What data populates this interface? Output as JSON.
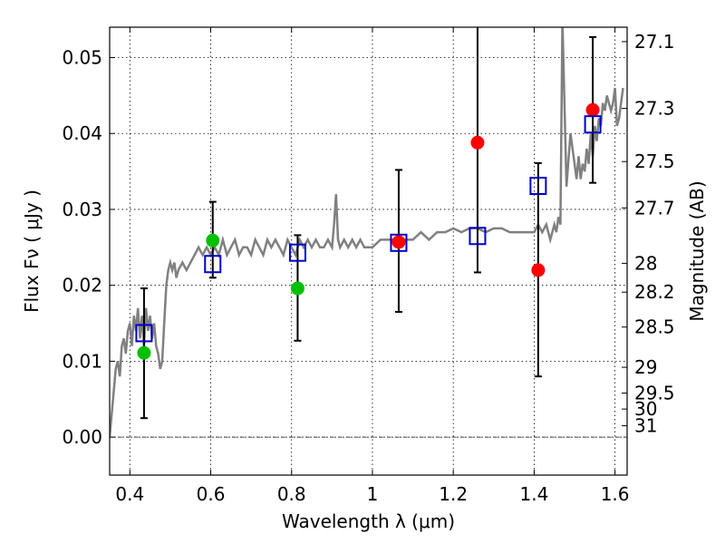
{
  "chart_data": {
    "type": "scatter",
    "xlabel": "Wavelength  λ (μm)",
    "ylabel": "Flux  Fν  ( μJy )",
    "y2label": "Magnitude (AB)",
    "xlim": [
      0.35,
      1.63
    ],
    "ylim": [
      -0.005,
      0.054
    ],
    "grid": true,
    "x_ticks": [
      {
        "value": 0.4,
        "label": "0.4"
      },
      {
        "value": 0.6,
        "label": "0.6"
      },
      {
        "value": 0.8,
        "label": "0.8"
      },
      {
        "value": 1.0,
        "label": "1"
      },
      {
        "value": 1.2,
        "label": "1.2"
      },
      {
        "value": 1.4,
        "label": "1.4"
      },
      {
        "value": 1.6,
        "label": "1.6"
      }
    ],
    "y_ticks": [
      {
        "value": 0.0,
        "label": "0.00"
      },
      {
        "value": 0.01,
        "label": "0.01"
      },
      {
        "value": 0.02,
        "label": "0.02"
      },
      {
        "value": 0.03,
        "label": "0.03"
      },
      {
        "value": 0.04,
        "label": "0.04"
      },
      {
        "value": 0.05,
        "label": "0.05"
      }
    ],
    "mag_ticks": [
      {
        "label": "27.1",
        "flux": 0.0521
      },
      {
        "label": "27.3",
        "flux": 0.0433
      },
      {
        "label": "27.5",
        "flux": 0.0363
      },
      {
        "label": "27.7",
        "flux": 0.0302
      },
      {
        "label": "28",
        "flux": 0.0229
      },
      {
        "label": "28.2",
        "flux": 0.0191
      },
      {
        "label": "28.5",
        "flux": 0.0145
      },
      {
        "label": "29",
        "flux": 0.0092
      },
      {
        "label": "29.5",
        "flux": 0.0058
      },
      {
        "label": "30",
        "flux": 0.0037
      },
      {
        "label": "31",
        "flux": 0.0015
      }
    ],
    "model_spectrum": {
      "color": "#808080",
      "x": [
        0.35,
        0.355,
        0.36,
        0.365,
        0.37,
        0.375,
        0.38,
        0.385,
        0.39,
        0.395,
        0.4,
        0.405,
        0.41,
        0.415,
        0.42,
        0.425,
        0.43,
        0.435,
        0.44,
        0.445,
        0.45,
        0.455,
        0.46,
        0.465,
        0.47,
        0.475,
        0.48,
        0.485,
        0.49,
        0.495,
        0.5,
        0.505,
        0.51,
        0.515,
        0.52,
        0.53,
        0.54,
        0.55,
        0.56,
        0.57,
        0.58,
        0.59,
        0.6,
        0.61,
        0.62,
        0.63,
        0.64,
        0.65,
        0.66,
        0.67,
        0.68,
        0.69,
        0.7,
        0.71,
        0.72,
        0.73,
        0.74,
        0.75,
        0.76,
        0.77,
        0.78,
        0.79,
        0.8,
        0.81,
        0.82,
        0.83,
        0.84,
        0.85,
        0.86,
        0.87,
        0.88,
        0.89,
        0.9,
        0.905,
        0.91,
        0.915,
        0.92,
        0.93,
        0.94,
        0.95,
        0.96,
        0.97,
        0.98,
        0.99,
        1.0,
        1.02,
        1.04,
        1.06,
        1.08,
        1.1,
        1.12,
        1.14,
        1.16,
        1.18,
        1.2,
        1.22,
        1.24,
        1.26,
        1.28,
        1.3,
        1.32,
        1.34,
        1.36,
        1.38,
        1.4,
        1.41,
        1.42,
        1.43,
        1.44,
        1.45,
        1.455,
        1.46,
        1.465,
        1.47,
        1.48,
        1.49,
        1.5,
        1.505,
        1.51,
        1.515,
        1.52,
        1.525,
        1.53,
        1.535,
        1.54,
        1.545,
        1.55,
        1.555,
        1.56,
        1.565,
        1.57,
        1.575,
        1.58,
        1.585,
        1.59,
        1.595,
        1.6,
        1.605,
        1.61,
        1.615,
        1.62
      ],
      "y": [
        0.0,
        0.003,
        0.006,
        0.009,
        0.01,
        0.008,
        0.012,
        0.013,
        0.011,
        0.014,
        0.015,
        0.012,
        0.016,
        0.014,
        0.017,
        0.013,
        0.016,
        0.012,
        0.017,
        0.014,
        0.016,
        0.013,
        0.015,
        0.012,
        0.011,
        0.009,
        0.01,
        0.015,
        0.02,
        0.022,
        0.023,
        0.022,
        0.023,
        0.021,
        0.022,
        0.023,
        0.022,
        0.023,
        0.024,
        0.025,
        0.024,
        0.025,
        0.024,
        0.025,
        0.024,
        0.026,
        0.024,
        0.025,
        0.026,
        0.024,
        0.025,
        0.025,
        0.024,
        0.026,
        0.025,
        0.024,
        0.026,
        0.025,
        0.026,
        0.025,
        0.024,
        0.026,
        0.025,
        0.024,
        0.026,
        0.025,
        0.026,
        0.025,
        0.026,
        0.025,
        0.025,
        0.026,
        0.025,
        0.028,
        0.032,
        0.026,
        0.025,
        0.026,
        0.025,
        0.026,
        0.025,
        0.026,
        0.025,
        0.025,
        0.025,
        0.026,
        0.026,
        0.026,
        0.026,
        0.026,
        0.027,
        0.026,
        0.027,
        0.027,
        0.0275,
        0.027,
        0.0275,
        0.0275,
        0.027,
        0.0275,
        0.0275,
        0.027,
        0.027,
        0.027,
        0.027,
        0.028,
        0.027,
        0.028,
        0.026,
        0.028,
        0.027,
        0.029,
        0.028,
        0.055,
        0.033,
        0.04,
        0.036,
        0.034,
        0.037,
        0.034,
        0.036,
        0.035,
        0.038,
        0.036,
        0.04,
        0.037,
        0.041,
        0.039,
        0.042,
        0.041,
        0.044,
        0.043,
        0.045,
        0.044,
        0.043,
        0.044,
        0.046,
        0.041,
        0.042,
        0.044,
        0.046
      ]
    },
    "series": [
      {
        "marker": "circle",
        "color": "#00c000",
        "x": [
          0.435,
          0.605,
          0.815
        ],
        "y": [
          0.0111,
          0.0259,
          0.0196
        ]
      },
      {
        "marker": "circle",
        "color": "#ff0000",
        "x": [
          1.065,
          1.26,
          1.41,
          1.545
        ],
        "y": [
          0.0257,
          0.0388,
          0.022,
          0.0431
        ]
      },
      {
        "marker": "open-square",
        "color": "#0000cc",
        "x": [
          0.435,
          0.605,
          0.815,
          1.065,
          1.26,
          1.41,
          1.545
        ],
        "y": [
          0.0137,
          0.0228,
          0.0243,
          0.0256,
          0.0265,
          0.0331,
          0.0412
        ]
      }
    ],
    "error_bars": {
      "color": "#000000",
      "x": [
        0.435,
        0.605,
        0.815,
        1.065,
        1.26,
        1.41,
        1.545
      ],
      "y_low": [
        0.0025,
        0.021,
        0.0127,
        0.0165,
        0.0217,
        0.008,
        0.0335
      ],
      "y_high": [
        0.0196,
        0.031,
        0.0266,
        0.0352,
        0.0545,
        0.0361,
        0.0527
      ]
    }
  }
}
